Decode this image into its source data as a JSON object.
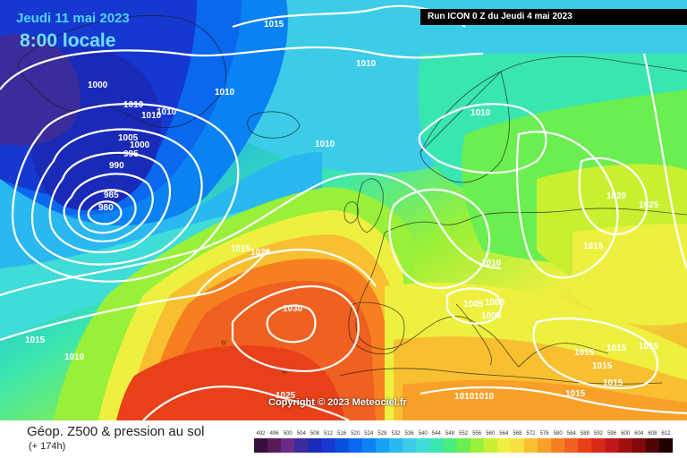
{
  "header": {
    "date": "Jeudi 11 mai 2023",
    "time": "8:00 locale",
    "run": "Run ICON 0 Z du Jeudi 4 mai 2023"
  },
  "copyright": "Copyright © 2023 Meteociel.fr",
  "footer": {
    "title": "Géop. Z500 & pression au sol",
    "subtitle": "(+ 174h)"
  },
  "colors": {
    "geopotential_scale": [
      "#3b0f3b",
      "#5a1a5a",
      "#6a2a8a",
      "#3a2c9a",
      "#1a2ab8",
      "#1538d0",
      "#0a50e0",
      "#0a68ee",
      "#0a82f2",
      "#18a0f4",
      "#2ab8f0",
      "#3ccce8",
      "#40dcd8",
      "#3ae6b0",
      "#48ec80",
      "#6aee50",
      "#98f038",
      "#c8f030",
      "#eef040",
      "#f8e040",
      "#f8c030",
      "#f8a028",
      "#f68020",
      "#f06020",
      "#e84018",
      "#d82818",
      "#c01818",
      "#a01010",
      "#800808",
      "#500404",
      "#200000"
    ]
  },
  "legend_ticks": [
    "492",
    "496",
    "500",
    "504",
    "508",
    "512",
    "516",
    "520",
    "524",
    "528",
    "532",
    "536",
    "540",
    "544",
    "548",
    "552",
    "556",
    "560",
    "564",
    "568",
    "572",
    "576",
    "580",
    "584",
    "588",
    "592",
    "596",
    "600",
    "604",
    "608",
    "612"
  ],
  "pressure_labels": [
    "1015",
    "1010",
    "1000",
    "1010",
    "1010",
    "1010",
    "1005",
    "1000",
    "995",
    "990",
    "985",
    "980",
    "1010",
    "1010",
    "1010",
    "1020",
    "1025",
    "1015",
    "1015",
    "1020",
    "1030",
    "1010",
    "1005",
    "1005",
    "1005",
    "1015",
    "1015",
    "1015",
    "1015",
    "1015",
    "1010",
    "1010",
    "1015",
    "1025",
    "1015",
    "1010"
  ]
}
